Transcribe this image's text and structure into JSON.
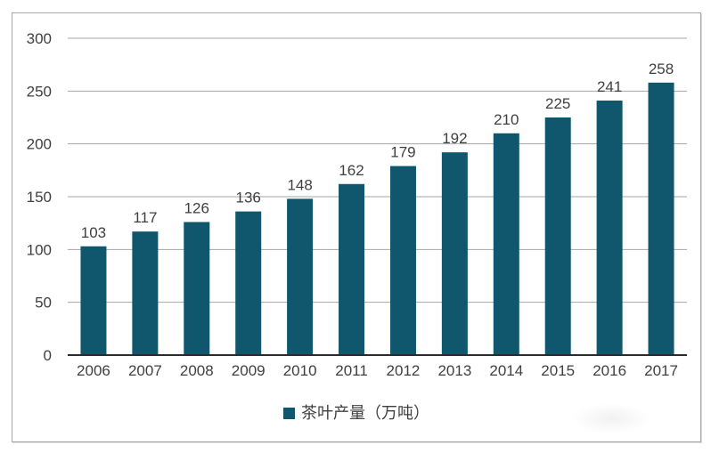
{
  "chart_data": {
    "type": "bar",
    "title": "",
    "categories": [
      "2006",
      "2007",
      "2008",
      "2009",
      "2010",
      "2011",
      "2012",
      "2013",
      "2014",
      "2015",
      "2016",
      "2017"
    ],
    "series": [
      {
        "name": "茶叶产量（万吨）",
        "values": [
          103,
          117,
          126,
          136,
          148,
          162,
          179,
          192,
          210,
          225,
          241,
          258
        ]
      }
    ],
    "data_labels_shown": true,
    "xlabel": "",
    "ylabel": "",
    "ylim": [
      0,
      300
    ],
    "yticks": [
      0,
      50,
      100,
      150,
      200,
      250,
      300
    ],
    "grid": "horizontal",
    "legend_position": "bottom",
    "colors": {
      "bar": "#10566C",
      "gridline": "#a6a6a6",
      "axis_line": "#2b2b2b",
      "tick_label": "#3f3f3f",
      "data_label": "#3f3f3f",
      "frame_border": "#a8a8a8",
      "background": "#ffffff"
    }
  },
  "legend": {
    "label": "茶叶产量（万吨）"
  }
}
